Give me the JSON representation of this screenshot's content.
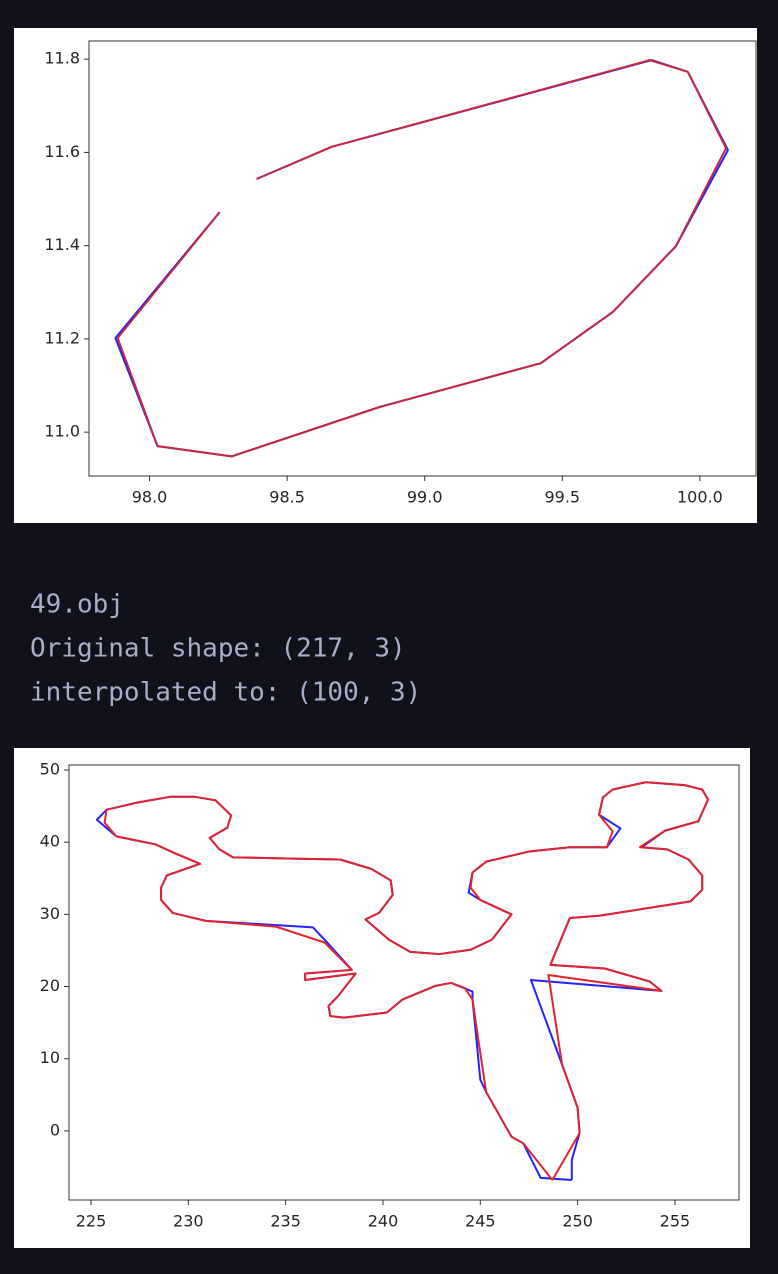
{
  "output_text": [
    "49.obj",
    "Original shape: (217, 3)",
    "interpolated to: (100, 3)"
  ],
  "chart_data": [
    {
      "type": "line",
      "xlim": [
        97.78,
        100.204
      ],
      "ylim": [
        10.906,
        11.839
      ],
      "xticks": [
        {
          "value": 98,
          "label": "98.0"
        },
        98.5,
        {
          "value": 99,
          "label": "99.0"
        },
        99.5,
        {
          "value": 100,
          "label": "100.0"
        }
      ],
      "yticks": [
        {
          "value": 11,
          "label": "11.0"
        },
        11.2,
        11.4,
        11.6,
        11.8
      ],
      "series": [
        {
          "color": "#2323ff",
          "x": [
            98.389,
            98.662,
            99.825,
            99.956,
            100.102,
            99.913,
            99.684,
            99.422,
            98.836,
            98.298,
            98.029,
            97.876,
            98.255
          ],
          "values": [
            11.543,
            11.612,
            11.798,
            11.773,
            11.605,
            11.399,
            11.258,
            11.148,
            11.054,
            10.948,
            10.97,
            11.202,
            11.472
          ]
        },
        {
          "color": "#c8283c",
          "x": [
            98.389,
            98.662,
            99.818,
            99.956,
            100.095,
            99.913,
            99.684,
            99.422,
            98.836,
            98.298,
            98.029,
            97.884,
            98.255
          ],
          "values": [
            11.543,
            11.612,
            11.798,
            11.773,
            11.609,
            11.399,
            11.258,
            11.148,
            11.054,
            10.948,
            10.97,
            11.202,
            11.472
          ]
        }
      ]
    },
    {
      "type": "line",
      "xlim": [
        223.87,
        258.29
      ],
      "ylim": [
        -9.57,
        50.69
      ],
      "xticks": [
        225,
        230,
        235,
        240,
        245,
        250,
        255
      ],
      "yticks": [
        0,
        10,
        20,
        30,
        40,
        50
      ],
      "series": [
        {
          "color": "#2323ff",
          "x": [
            249.7,
            249.7,
            250.1,
            250.0,
            249.2,
            247.6,
            254.3,
            253.7,
            251.4,
            248.6,
            249.6,
            251.1,
            255.8,
            256.4,
            256.4,
            255.7,
            254.6,
            253.3,
            254.5,
            256.2,
            256.7,
            256.4,
            255.5,
            253.5,
            251.8,
            251.3,
            251.1,
            252.2,
            251.5,
            249.6,
            247.5,
            245.3,
            244.6,
            244.4,
            245.0,
            246.6,
            245.6,
            244.5,
            242.9,
            241.4,
            240.3,
            239.1,
            239.8,
            240.5,
            240.4,
            239.4,
            237.8,
            235.7,
            232.3,
            231.6,
            231.1,
            232.0,
            232.2,
            231.4,
            230.3,
            229.1,
            227.4,
            225.8,
            225.3,
            226.3,
            228.3,
            229.2,
            230.6,
            228.9,
            228.6,
            228.6,
            229.2,
            230.9,
            236.4,
            237.1,
            238.4,
            236.0,
            236.0,
            238.6,
            237.7,
            237.2,
            237.3,
            238.0,
            240.2,
            241.0,
            242.7,
            243.5,
            244.6,
            244.6,
            245.0,
            245.3,
            246.6,
            247.2,
            248.1,
            249.7
          ],
          "values": [
            -6.8,
            -4.0,
            -0.3,
            3.2,
            9.2,
            20.9,
            19.4,
            20.7,
            22.5,
            23.0,
            29.5,
            29.8,
            31.8,
            33.4,
            35.4,
            37.6,
            39.0,
            39.3,
            41.6,
            42.9,
            45.9,
            47.3,
            47.9,
            48.3,
            47.3,
            46.2,
            43.8,
            41.9,
            39.3,
            39.3,
            38.7,
            37.3,
            35.8,
            33.0,
            32.0,
            30.0,
            26.5,
            25.1,
            24.5,
            24.8,
            26.5,
            29.3,
            30.2,
            32.7,
            34.7,
            36.3,
            37.6,
            37.7,
            37.9,
            39.0,
            40.6,
            42.0,
            43.7,
            45.8,
            46.3,
            46.3,
            45.5,
            44.5,
            43.1,
            40.8,
            39.7,
            38.6,
            37.0,
            35.4,
            33.7,
            32.0,
            30.2,
            29.1,
            28.2,
            26.2,
            22.3,
            21.8,
            20.9,
            21.8,
            18.7,
            17.3,
            15.9,
            15.7,
            16.4,
            18.2,
            20.1,
            20.5,
            19.3,
            18.2,
            7.1,
            5.4,
            -0.8,
            -1.7,
            -6.5,
            -6.8
          ]
        },
        {
          "color": "#e0262a",
          "x": [
            248.7,
            250.1,
            250.0,
            249.2,
            248.5,
            254.3,
            253.7,
            251.4,
            248.6,
            249.6,
            251.1,
            255.8,
            256.4,
            256.4,
            255.7,
            254.6,
            253.2,
            254.5,
            256.2,
            256.7,
            256.4,
            255.5,
            253.5,
            251.8,
            251.3,
            251.1,
            251.8,
            251.5,
            249.6,
            247.5,
            245.3,
            244.6,
            244.5,
            245.0,
            246.6,
            245.6,
            244.5,
            242.9,
            241.4,
            240.3,
            239.1,
            239.8,
            240.5,
            240.4,
            239.4,
            237.8,
            235.7,
            232.3,
            231.6,
            231.1,
            232.0,
            232.2,
            231.4,
            230.3,
            229.1,
            227.4,
            225.8,
            225.7,
            226.3,
            228.3,
            229.2,
            230.6,
            228.9,
            228.6,
            228.6,
            229.2,
            230.9,
            234.5,
            237.0,
            238.4,
            236.0,
            236.0,
            238.6,
            237.7,
            237.2,
            237.3,
            238.0,
            240.2,
            241.0,
            242.7,
            243.5,
            244.2,
            244.6,
            244.9,
            245.3,
            246.6,
            247.2,
            248.7
          ],
          "values": [
            -6.8,
            -0.3,
            3.2,
            9.2,
            21.6,
            19.4,
            20.7,
            22.5,
            23.0,
            29.5,
            29.8,
            31.8,
            33.4,
            35.4,
            37.6,
            39.0,
            39.3,
            41.6,
            42.9,
            45.9,
            47.3,
            47.9,
            48.3,
            47.3,
            46.2,
            43.8,
            41.5,
            39.3,
            39.3,
            38.7,
            37.3,
            35.8,
            33.7,
            32.0,
            30.0,
            26.5,
            25.1,
            24.5,
            24.8,
            26.5,
            29.3,
            30.2,
            32.7,
            34.7,
            36.3,
            37.6,
            37.7,
            37.9,
            39.0,
            40.6,
            42.0,
            43.7,
            45.8,
            46.3,
            46.3,
            45.5,
            44.5,
            42.7,
            40.8,
            39.7,
            38.6,
            37.0,
            35.4,
            33.7,
            32.0,
            30.2,
            29.1,
            28.3,
            26.1,
            22.3,
            21.8,
            20.9,
            21.8,
            18.7,
            17.3,
            15.9,
            15.7,
            16.4,
            18.2,
            20.1,
            20.5,
            19.8,
            18.2,
            12.6,
            5.4,
            -0.8,
            -1.7,
            -6.8
          ]
        }
      ]
    }
  ]
}
